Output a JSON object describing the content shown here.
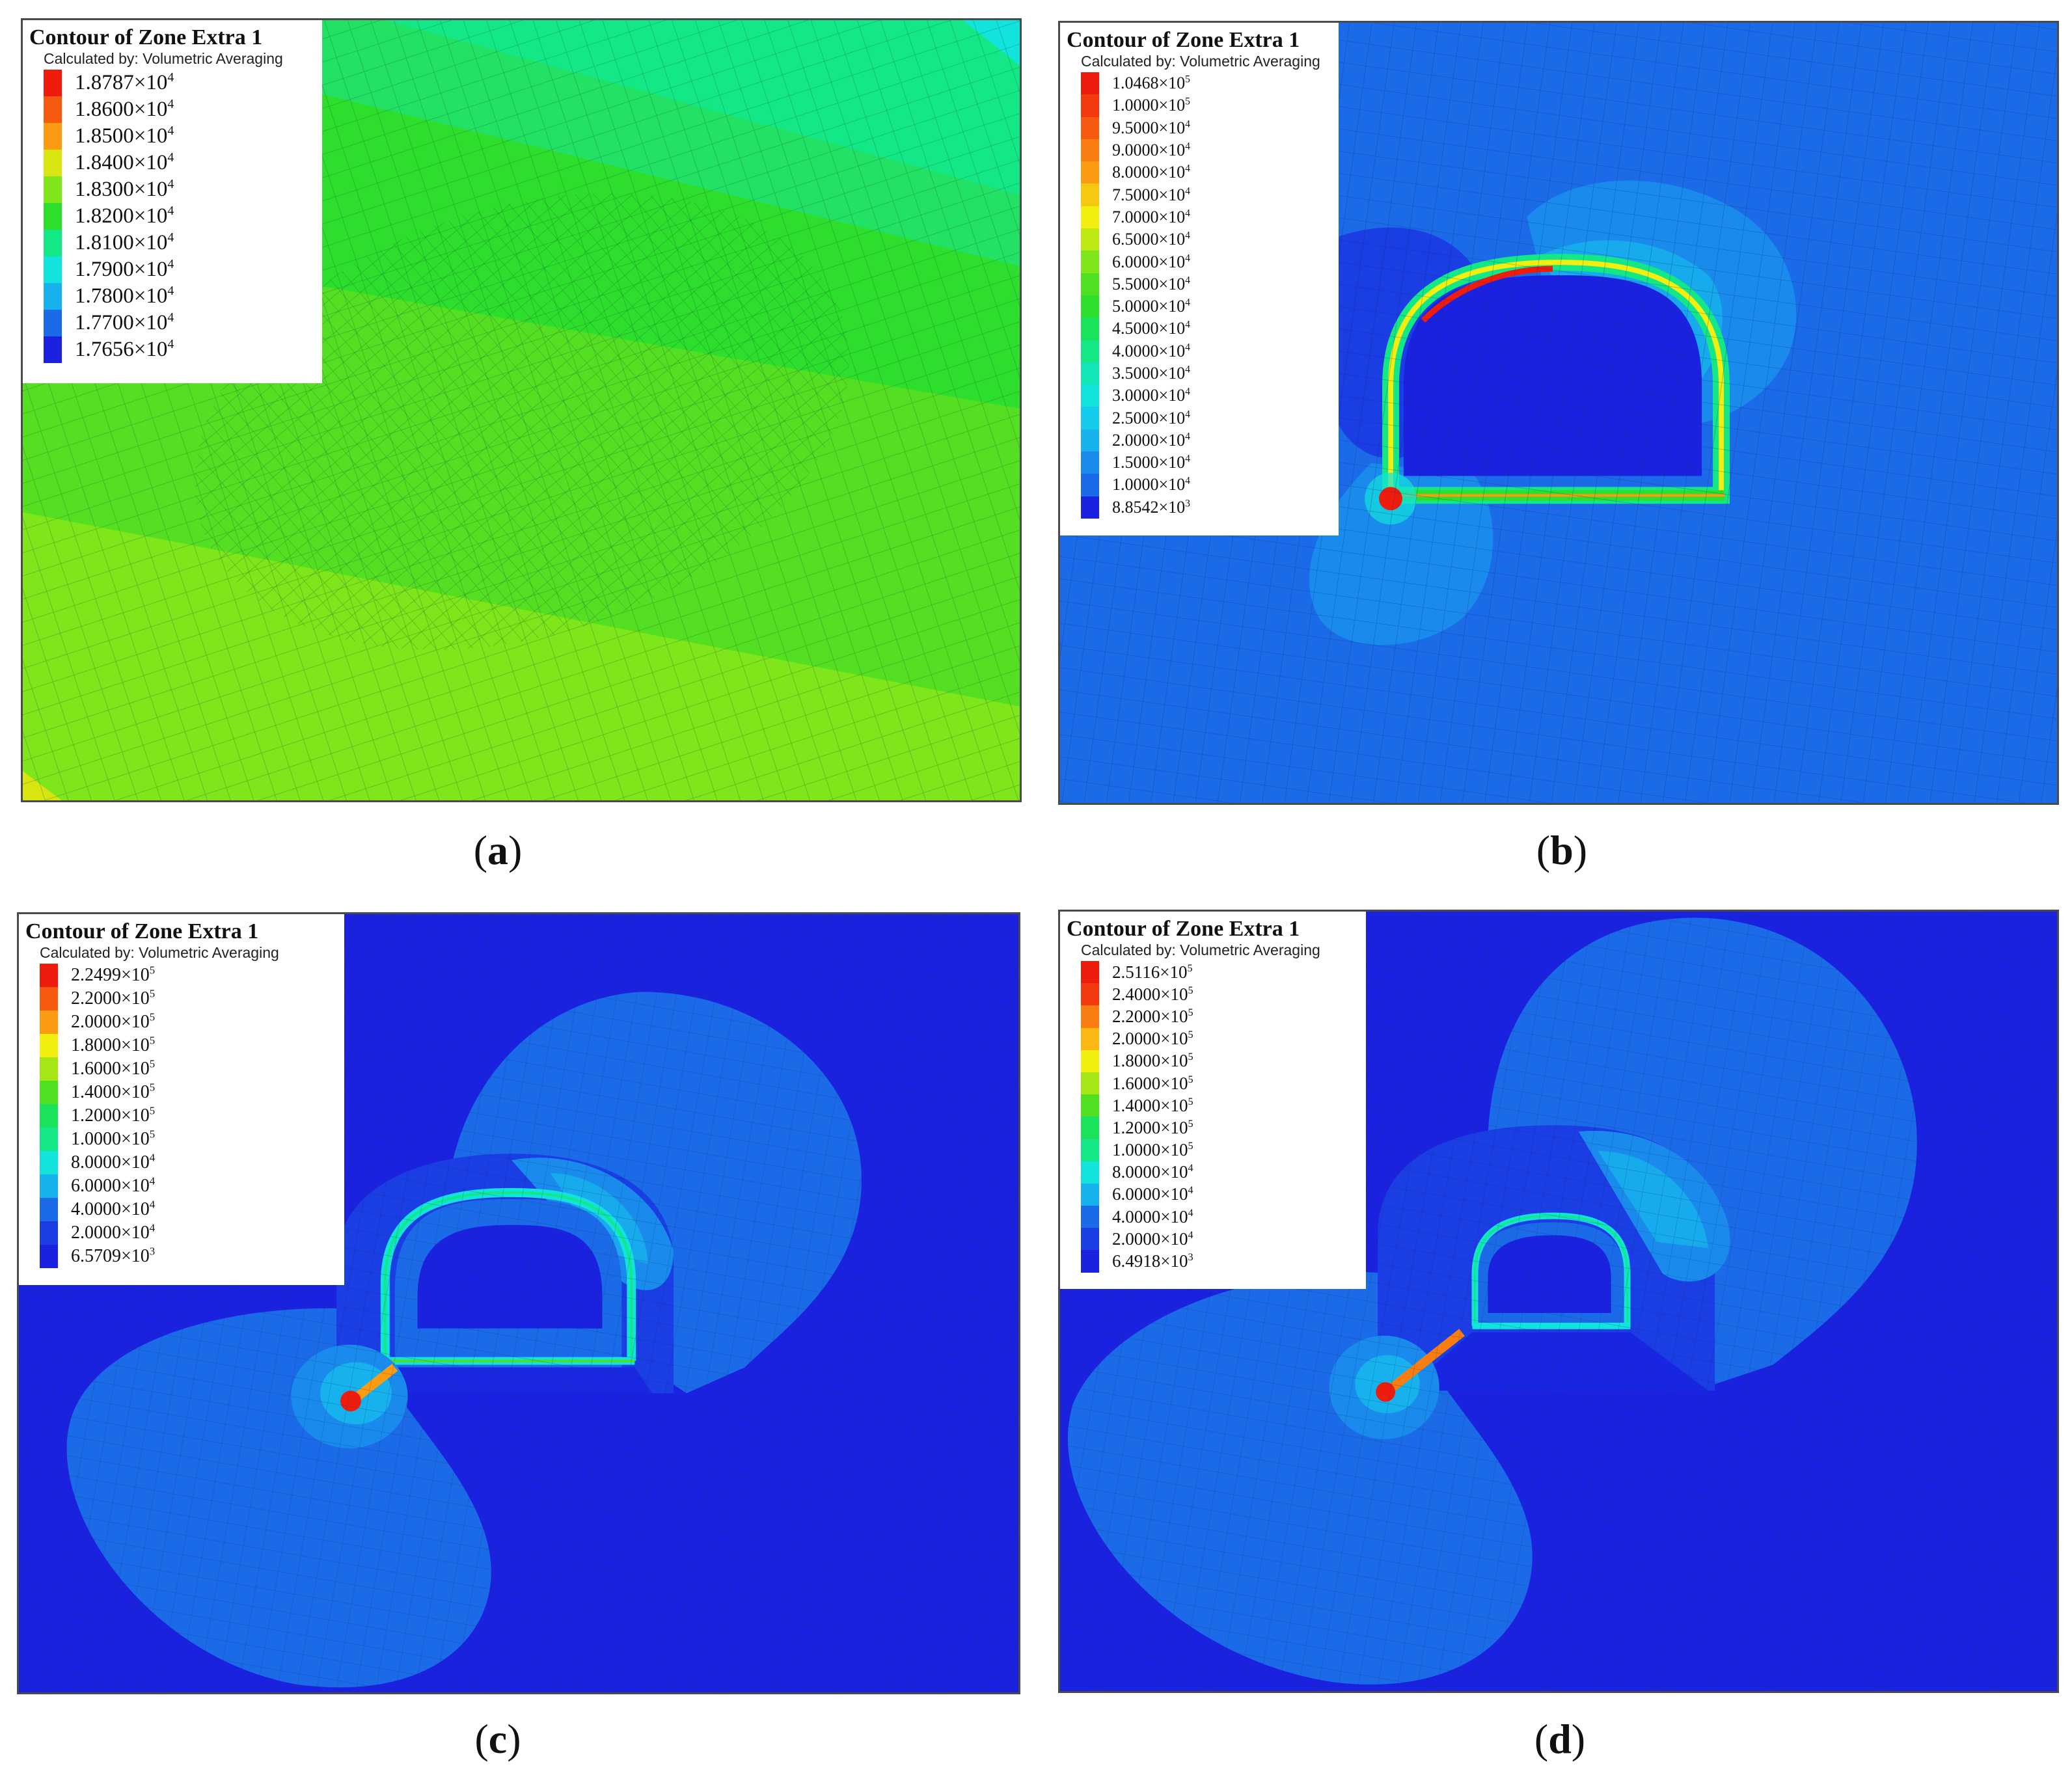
{
  "panels": [
    {
      "id": "a",
      "caption_letter": "a",
      "legend": {
        "title": "Contour of Zone Extra 1",
        "subtitle": "Calculated by: Volumetric Averaging",
        "entries": [
          {
            "mantissa": "1.8787",
            "exponent": "4",
            "color": "#ee1c0c"
          },
          {
            "mantissa": "1.8600",
            "exponent": "4",
            "color": "#f65a10"
          },
          {
            "mantissa": "1.8500",
            "exponent": "4",
            "color": "#fb9b12"
          },
          {
            "mantissa": "1.8400",
            "exponent": "4",
            "color": "#d8e511"
          },
          {
            "mantissa": "1.8300",
            "exponent": "4",
            "color": "#7ee61a"
          },
          {
            "mantissa": "1.8200",
            "exponent": "4",
            "color": "#2ddf2c"
          },
          {
            "mantissa": "1.8100",
            "exponent": "4",
            "color": "#14e886"
          },
          {
            "mantissa": "1.7900",
            "exponent": "4",
            "color": "#12e3dd"
          },
          {
            "mantissa": "1.7800",
            "exponent": "4",
            "color": "#17b2ee"
          },
          {
            "mantissa": "1.7700",
            "exponent": "4",
            "color": "#1b6ae8"
          },
          {
            "mantissa": "1.7656",
            "exponent": "4",
            "color": "#1a22e0"
          }
        ]
      }
    },
    {
      "id": "b",
      "caption_letter": "b",
      "legend": {
        "title": "Contour of Zone Extra 1",
        "subtitle": "Calculated by: Volumetric Averaging",
        "entries": [
          {
            "mantissa": "1.0468",
            "exponent": "5",
            "color": "#ee1c0c"
          },
          {
            "mantissa": "1.0000",
            "exponent": "5",
            "color": "#f33a0e"
          },
          {
            "mantissa": "9.5000",
            "exponent": "4",
            "color": "#f65a10"
          },
          {
            "mantissa": "9.0000",
            "exponent": "4",
            "color": "#f97d11"
          },
          {
            "mantissa": "8.0000",
            "exponent": "4",
            "color": "#fb9b12"
          },
          {
            "mantissa": "7.5000",
            "exponent": "4",
            "color": "#f7c812"
          },
          {
            "mantissa": "7.0000",
            "exponent": "4",
            "color": "#f2ee10"
          },
          {
            "mantissa": "6.5000",
            "exponent": "4",
            "color": "#bde814"
          },
          {
            "mantissa": "6.0000",
            "exponent": "4",
            "color": "#7ee61a"
          },
          {
            "mantissa": "5.5000",
            "exponent": "4",
            "color": "#4fe022"
          },
          {
            "mantissa": "5.0000",
            "exponent": "4",
            "color": "#2ddf2c"
          },
          {
            "mantissa": "4.5000",
            "exponent": "4",
            "color": "#18e35a"
          },
          {
            "mantissa": "4.0000",
            "exponent": "4",
            "color": "#14e886"
          },
          {
            "mantissa": "3.5000",
            "exponent": "4",
            "color": "#12e6b6"
          },
          {
            "mantissa": "3.0000",
            "exponent": "4",
            "color": "#12e3dd"
          },
          {
            "mantissa": "2.5000",
            "exponent": "4",
            "color": "#15cbeb"
          },
          {
            "mantissa": "2.0000",
            "exponent": "4",
            "color": "#17b2ee"
          },
          {
            "mantissa": "1.5000",
            "exponent": "4",
            "color": "#1a8bec"
          },
          {
            "mantissa": "1.0000",
            "exponent": "4",
            "color": "#1b6ae8"
          },
          {
            "mantissa": "8.8542",
            "exponent": "3",
            "color": "#1a22e0"
          }
        ]
      }
    },
    {
      "id": "c",
      "caption_letter": "c",
      "legend": {
        "title": "Contour of Zone Extra 1",
        "subtitle": "Calculated by: Volumetric Averaging",
        "entries": [
          {
            "mantissa": "2.2499",
            "exponent": "5",
            "color": "#ee1c0c"
          },
          {
            "mantissa": "2.2000",
            "exponent": "5",
            "color": "#f65a10"
          },
          {
            "mantissa": "2.0000",
            "exponent": "5",
            "color": "#fb9b12"
          },
          {
            "mantissa": "1.8000",
            "exponent": "5",
            "color": "#f2ee10"
          },
          {
            "mantissa": "1.6000",
            "exponent": "5",
            "color": "#a6e616"
          },
          {
            "mantissa": "1.4000",
            "exponent": "5",
            "color": "#4fe022"
          },
          {
            "mantissa": "1.2000",
            "exponent": "5",
            "color": "#18e35a"
          },
          {
            "mantissa": "1.0000",
            "exponent": "5",
            "color": "#14e886"
          },
          {
            "mantissa": "8.0000",
            "exponent": "4",
            "color": "#12e3dd"
          },
          {
            "mantissa": "6.0000",
            "exponent": "4",
            "color": "#17b2ee"
          },
          {
            "mantissa": "4.0000",
            "exponent": "4",
            "color": "#1b6ae8"
          },
          {
            "mantissa": "2.0000",
            "exponent": "4",
            "color": "#1a3de4"
          },
          {
            "mantissa": "6.5709",
            "exponent": "3",
            "color": "#1a22e0"
          }
        ]
      }
    },
    {
      "id": "d",
      "caption_letter": "d",
      "legend": {
        "title": "Contour of Zone Extra 1",
        "subtitle": "Calculated by: Volumetric Averaging",
        "entries": [
          {
            "mantissa": "2.5116",
            "exponent": "5",
            "color": "#ee1c0c"
          },
          {
            "mantissa": "2.4000",
            "exponent": "5",
            "color": "#f33a0e"
          },
          {
            "mantissa": "2.2000",
            "exponent": "5",
            "color": "#f97d11"
          },
          {
            "mantissa": "2.0000",
            "exponent": "5",
            "color": "#fbb812"
          },
          {
            "mantissa": "1.8000",
            "exponent": "5",
            "color": "#f2ee10"
          },
          {
            "mantissa": "1.6000",
            "exponent": "5",
            "color": "#a6e616"
          },
          {
            "mantissa": "1.4000",
            "exponent": "5",
            "color": "#4fe022"
          },
          {
            "mantissa": "1.2000",
            "exponent": "5",
            "color": "#18e35a"
          },
          {
            "mantissa": "1.0000",
            "exponent": "5",
            "color": "#14e886"
          },
          {
            "mantissa": "8.0000",
            "exponent": "4",
            "color": "#12e3dd"
          },
          {
            "mantissa": "6.0000",
            "exponent": "4",
            "color": "#17b2ee"
          },
          {
            "mantissa": "4.0000",
            "exponent": "4",
            "color": "#1b6ae8"
          },
          {
            "mantissa": "2.0000",
            "exponent": "4",
            "color": "#1a3de4"
          },
          {
            "mantissa": "6.4918",
            "exponent": "3",
            "color": "#1a22e0"
          }
        ]
      }
    }
  ]
}
